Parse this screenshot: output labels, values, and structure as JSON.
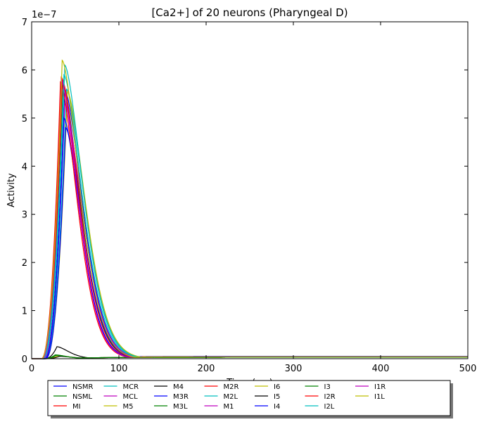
{
  "chart_data": {
    "type": "line",
    "title": "[Ca2+] of 20 neurons (Pharyngeal D)",
    "xlabel": "Time (ms)",
    "ylabel": "Activity",
    "y_scale_label": "1e−7",
    "xlim": [
      0,
      500
    ],
    "ylim": [
      0,
      7
    ],
    "y_multiplier": 1e-07,
    "x_ticks": [
      0,
      100,
      200,
      300,
      400,
      500
    ],
    "y_ticks": [
      0,
      1,
      2,
      3,
      4,
      5,
      6,
      7
    ],
    "grid": false,
    "legend_position": "bottom-center",
    "legend_columns": 8,
    "series": [
      {
        "name": "NSMR",
        "color": "#0000ff",
        "peak": 5.6,
        "t_peak": 38,
        "onset": 14,
        "plateau": 0.05
      },
      {
        "name": "NSML",
        "color": "#008000",
        "peak": 5.7,
        "t_peak": 36,
        "onset": 13,
        "plateau": 0.04
      },
      {
        "name": "MI",
        "color": "#ff0000",
        "peak": 5.85,
        "t_peak": 34,
        "onset": 12,
        "plateau": 0.04
      },
      {
        "name": "MCR",
        "color": "#00bfbf",
        "peak": 5.6,
        "t_peak": 40,
        "onset": 15,
        "plateau": 0.04
      },
      {
        "name": "MCL",
        "color": "#bf00bf",
        "peak": 5.75,
        "t_peak": 35,
        "onset": 13,
        "plateau": 0.04
      },
      {
        "name": "M5",
        "color": "#bfbf00",
        "peak": 5.55,
        "t_peak": 41,
        "onset": 16,
        "plateau": 0.04
      },
      {
        "name": "M4",
        "color": "#000000",
        "peak": 0.25,
        "t_peak": 29,
        "onset": 15,
        "plateau": 0.03
      },
      {
        "name": "M3R",
        "color": "#0000ff",
        "peak": 4.8,
        "t_peak": 39,
        "onset": 16,
        "plateau": 0.04
      },
      {
        "name": "M3L",
        "color": "#008000",
        "peak": 0.08,
        "t_peak": 27,
        "onset": 14,
        "plateau": 0.03
      },
      {
        "name": "M2R",
        "color": "#ff0000",
        "peak": 5.8,
        "t_peak": 35,
        "onset": 12,
        "plateau": 0.04
      },
      {
        "name": "M2L",
        "color": "#00bfbf",
        "peak": 6.1,
        "t_peak": 38,
        "onset": 13,
        "plateau": 0.04
      },
      {
        "name": "M1",
        "color": "#bf00bf",
        "peak": 5.3,
        "t_peak": 38,
        "onset": 14,
        "plateau": 0.04
      },
      {
        "name": "I6",
        "color": "#bfbf00",
        "peak": 0.06,
        "t_peak": 30,
        "onset": 15,
        "plateau": 0.03
      },
      {
        "name": "I5",
        "color": "#000000",
        "peak": 0.05,
        "t_peak": 32,
        "onset": 16,
        "plateau": 0.03
      },
      {
        "name": "I4",
        "color": "#0000ff",
        "peak": 5.0,
        "t_peak": 37,
        "onset": 15,
        "plateau": 0.04
      },
      {
        "name": "I3",
        "color": "#008000",
        "peak": 0.07,
        "t_peak": 28,
        "onset": 14,
        "plateau": 0.03
      },
      {
        "name": "I2R",
        "color": "#ff0000",
        "peak": 5.75,
        "t_peak": 33,
        "onset": 11,
        "plateau": 0.04
      },
      {
        "name": "I2L",
        "color": "#00bfbf",
        "peak": 5.9,
        "t_peak": 37,
        "onset": 12,
        "plateau": 0.04
      },
      {
        "name": "I1R",
        "color": "#bf00bf",
        "peak": 5.8,
        "t_peak": 34,
        "onset": 12,
        "plateau": 0.04
      },
      {
        "name": "I1L",
        "color": "#bfbf00",
        "peak": 6.2,
        "t_peak": 35,
        "onset": 11,
        "plateau": 0.04
      }
    ]
  }
}
